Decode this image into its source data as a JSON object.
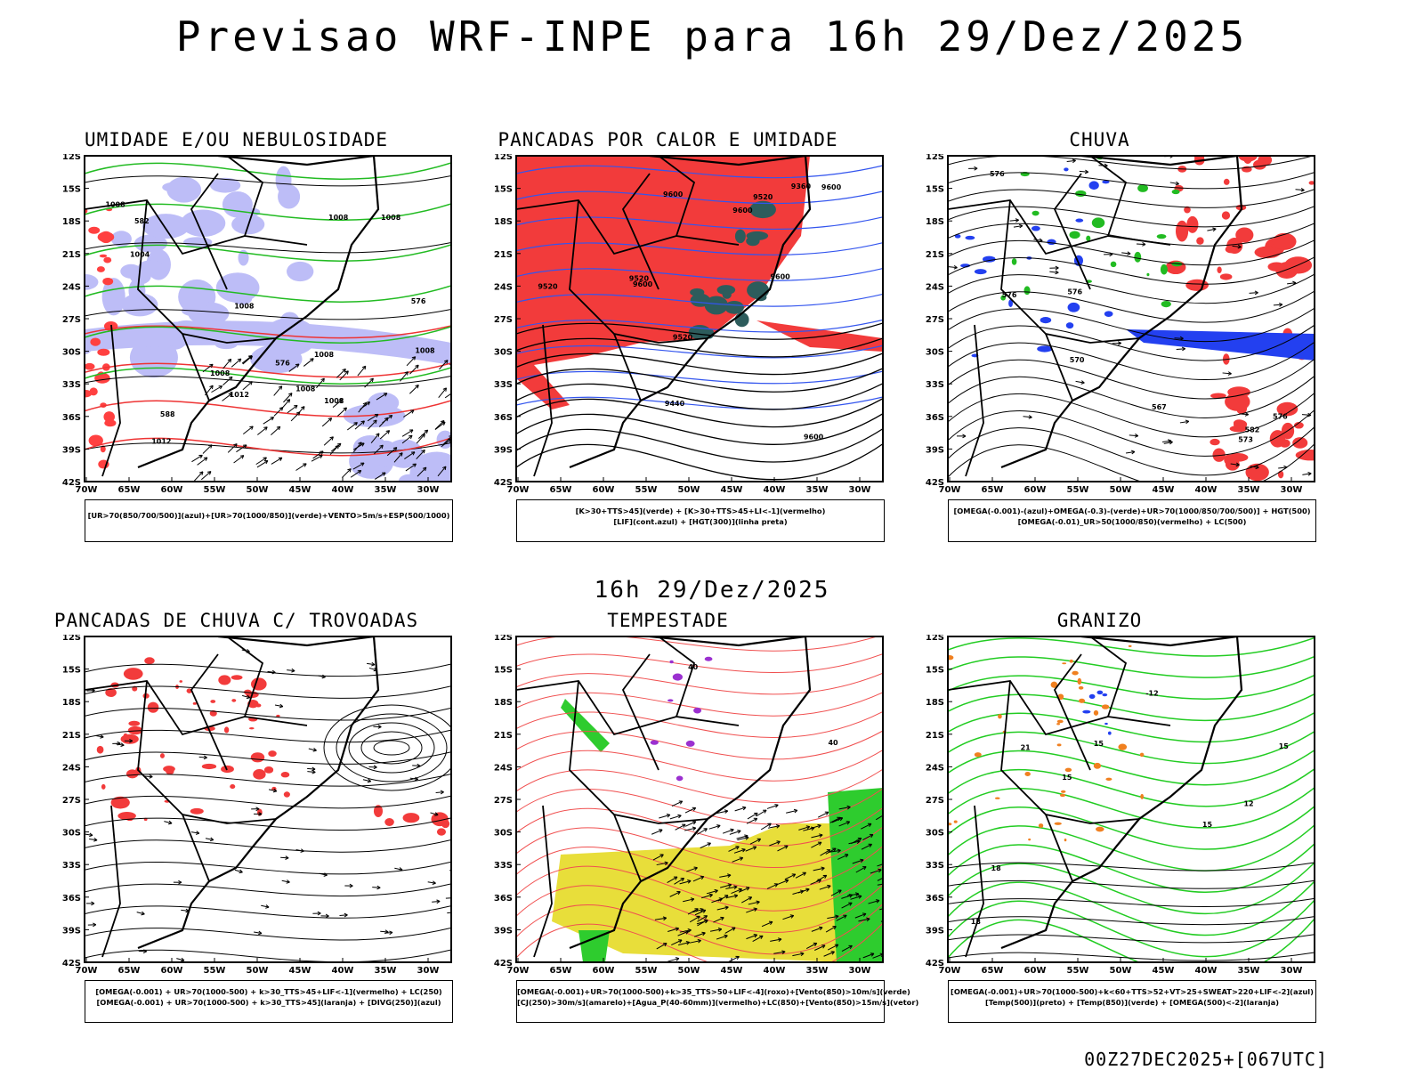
{
  "page": {
    "title": "Previsao WRF-INPE  para 16h 29/Dez/2025",
    "middle_title": "16h 29/Dez/2025",
    "footer": "00Z27DEC2025+[067UTC]"
  },
  "chart_data": [
    {
      "type": "map",
      "title": "UMIDADE E/OU NEBULOSIDADE",
      "lon_ticks": [
        "70W",
        "65W",
        "60W",
        "55W",
        "50W",
        "45W",
        "40W",
        "35W",
        "30W"
      ],
      "lat_ticks": [
        "12S",
        "15S",
        "18S",
        "21S",
        "24S",
        "27S",
        "30S",
        "33S",
        "36S",
        "39S",
        "42S"
      ],
      "legend": [
        "[UR>70(850/700/500)](azul)+[UR>70(1000/850)](verde)+VENTO>5m/s+ESP(500/1000)"
      ],
      "contour_labels": [
        "1008",
        "1008",
        "1008",
        "1004",
        "1012",
        "1008",
        "1012",
        "1008",
        "1008",
        "1008",
        "1008",
        "1008",
        "576",
        "576",
        "582",
        "588"
      ]
    },
    {
      "type": "map",
      "title": "PANCADAS POR CALOR E UMIDADE",
      "lon_ticks": [
        "70W",
        "65W",
        "60W",
        "55W",
        "50W",
        "45W",
        "40W",
        "35W",
        "30W"
      ],
      "lat_ticks": [
        "12S",
        "15S",
        "18S",
        "21S",
        "24S",
        "27S",
        "30S",
        "33S",
        "36S",
        "39S",
        "42S"
      ],
      "legend": [
        "[K>30+TTS>45](verde) + [K>30+TTS>45+LI<-1](vermelho)",
        "[LIF](cont.azul) + [HGT(300)](linha preta)"
      ],
      "contour_labels": [
        "9600",
        "9600",
        "9600",
        "9520",
        "9600",
        "9520",
        "9600",
        "9520",
        "9440",
        "9360",
        "9520",
        "9600"
      ]
    },
    {
      "type": "map",
      "title": "CHUVA",
      "lon_ticks": [
        "70W",
        "65W",
        "60W",
        "55W",
        "50W",
        "45W",
        "40W",
        "35W",
        "30W"
      ],
      "lat_ticks": [
        "12S",
        "15S",
        "18S",
        "21S",
        "24S",
        "27S",
        "30S",
        "33S",
        "36S",
        "39S",
        "42S"
      ],
      "legend": [
        "[OMEGA(-0.001)-(azul)+OMEGA(-0.3)-(verde)+UR>70(1000/850/700/500)] + HGT(500)",
        "[OMEGA(-0.01)_UR>50(1000/850)(vermelho) + LC(500)"
      ],
      "contour_labels": [
        "582",
        "576",
        "576",
        "576",
        "576",
        "573",
        "570",
        "567"
      ]
    },
    {
      "type": "map",
      "title": "PANCADAS DE CHUVA C/ TROVOADAS",
      "lon_ticks": [
        "70W",
        "65W",
        "60W",
        "55W",
        "50W",
        "45W",
        "40W",
        "35W",
        "30W"
      ],
      "lat_ticks": [
        "12S",
        "15S",
        "18S",
        "21S",
        "24S",
        "27S",
        "30S",
        "33S",
        "36S",
        "39S",
        "42S"
      ],
      "legend": [
        "[OMEGA(-0.001) + UR>70(1000-500) + k>30_TTS>45+LIF<-1](vermelho) + LC(250)",
        "[OMEGA(-0.001) + UR>70(1000-500) + k>30_TTS>45](laranja) + [DIVG(250)](azul)"
      ],
      "contour_labels": []
    },
    {
      "type": "map",
      "title": "TEMPESTADE",
      "lon_ticks": [
        "70W",
        "65W",
        "60W",
        "55W",
        "50W",
        "45W",
        "40W",
        "35W",
        "30W"
      ],
      "lat_ticks": [
        "12S",
        "15S",
        "18S",
        "21S",
        "24S",
        "27S",
        "30S",
        "33S",
        "36S",
        "39S",
        "42S"
      ],
      "legend": [
        "[OMEGA(-0.001)+UR>70(1000-500)+k>35_TTS>50+LIF<-4](roxo)+[Vento(850)>10m/s](verde)",
        "[CJ(250)>30m/s](amarelo)+[Agua_P(40-60mm)](vermelho)+LC(850)+[Vento(850)>15m/s](vetor)"
      ],
      "contour_labels": [
        "40",
        "40"
      ]
    },
    {
      "type": "map",
      "title": "GRANIZO",
      "lon_ticks": [
        "70W",
        "65W",
        "60W",
        "55W",
        "50W",
        "45W",
        "40W",
        "35W",
        "30W"
      ],
      "lat_ticks": [
        "12S",
        "15S",
        "18S",
        "21S",
        "24S",
        "27S",
        "30S",
        "33S",
        "36S",
        "39S",
        "42S"
      ],
      "legend": [
        "[OMEGA(-0.001)+UR>70(1000-500)+k<60+TTS>52+VT>25+SWEAT>220+LIF<-2](azul)",
        "[Temp(500)](preto) + [Temp(850)](verde) + [OMEGA(500)<-2](laranja)"
      ],
      "contour_labels": [
        "15",
        "12",
        "15",
        "18",
        "15",
        "21",
        "15",
        "18",
        "-12"
      ]
    }
  ]
}
